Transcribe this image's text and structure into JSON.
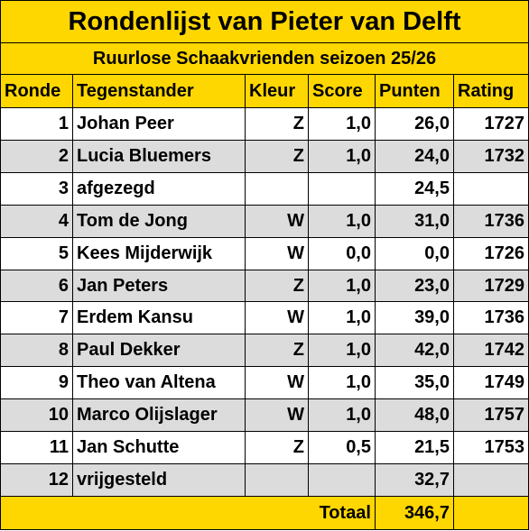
{
  "title": "Rondenlijst van Pieter van Delft",
  "subtitle": "Ruurlose Schaakvrienden seizoen 25/26",
  "columns": [
    "Ronde",
    "Tegenstander",
    "Kleur",
    "Score",
    "Punten",
    "Rating"
  ],
  "rows": [
    {
      "ronde": "1",
      "tegenstander": "Johan Peer",
      "kleur": "Z",
      "score": "1,0",
      "punten": "26,0",
      "rating": "1727"
    },
    {
      "ronde": "2",
      "tegenstander": "Lucia Bluemers",
      "kleur": "Z",
      "score": "1,0",
      "punten": "24,0",
      "rating": "1732"
    },
    {
      "ronde": "3",
      "tegenstander": "afgezegd",
      "kleur": "",
      "score": "",
      "punten": "24,5",
      "rating": ""
    },
    {
      "ronde": "4",
      "tegenstander": "Tom de Jong",
      "kleur": "W",
      "score": "1,0",
      "punten": "31,0",
      "rating": "1736"
    },
    {
      "ronde": "5",
      "tegenstander": "Kees Mijderwijk",
      "kleur": "W",
      "score": "0,0",
      "punten": "0,0",
      "rating": "1726"
    },
    {
      "ronde": "6",
      "tegenstander": "Jan Peters",
      "kleur": "Z",
      "score": "1,0",
      "punten": "23,0",
      "rating": "1729"
    },
    {
      "ronde": "7",
      "tegenstander": "Erdem Kansu",
      "kleur": "W",
      "score": "1,0",
      "punten": "39,0",
      "rating": "1736"
    },
    {
      "ronde": "8",
      "tegenstander": "Paul Dekker",
      "kleur": "Z",
      "score": "1,0",
      "punten": "42,0",
      "rating": "1742"
    },
    {
      "ronde": "9",
      "tegenstander": "Theo van Altena",
      "kleur": "W",
      "score": "1,0",
      "punten": "35,0",
      "rating": "1749"
    },
    {
      "ronde": "10",
      "tegenstander": "Marco Olijslager",
      "kleur": "W",
      "score": "1,0",
      "punten": "48,0",
      "rating": "1757"
    },
    {
      "ronde": "11",
      "tegenstander": "Jan Schutte",
      "kleur": "Z",
      "score": "0,5",
      "punten": "21,5",
      "rating": "1753"
    },
    {
      "ronde": "12",
      "tegenstander": "vrijgesteld",
      "kleur": "",
      "score": "",
      "punten": "32,7",
      "rating": ""
    }
  ],
  "total": {
    "label": "Totaal",
    "value": "346,7"
  },
  "colors": {
    "header": "#ffd700",
    "alt_row": "#dcdcdc",
    "row": "#ffffff"
  }
}
